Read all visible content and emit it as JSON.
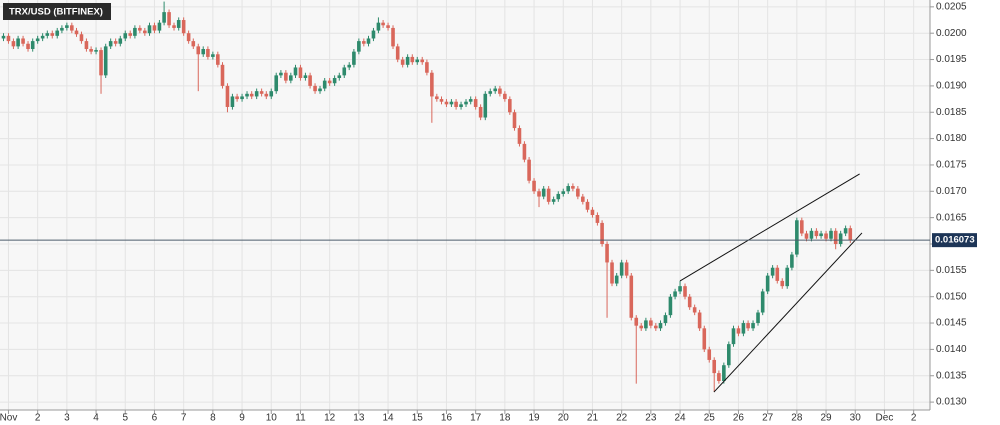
{
  "chart_data": {
    "type": "candlestick",
    "title": "TRX/USD (BITFINEX)",
    "x": [
      0.83,
      1,
      1.17,
      1.33,
      1.5,
      1.67,
      1.83,
      2,
      2.17,
      2.33,
      2.5,
      2.67,
      2.83,
      3,
      3.17,
      3.33,
      3.5,
      3.67,
      3.83,
      4,
      4.17,
      4.33,
      4.5,
      4.67,
      4.83,
      5,
      5.17,
      5.33,
      5.5,
      5.67,
      5.83,
      6,
      6.17,
      6.33,
      6.5,
      6.67,
      6.83,
      7,
      7.17,
      7.33,
      7.5,
      7.67,
      7.83,
      8,
      8.17,
      8.33,
      8.5,
      8.67,
      8.83,
      9,
      9.17,
      9.33,
      9.5,
      9.67,
      9.83,
      10,
      10.17,
      10.33,
      10.5,
      10.67,
      10.83,
      11,
      11.17,
      11.33,
      11.5,
      11.67,
      11.83,
      12,
      12.17,
      12.33,
      12.5,
      12.67,
      12.83,
      13,
      13.17,
      13.33,
      13.5,
      13.67,
      13.83,
      14,
      14.17,
      14.33,
      14.5,
      14.67,
      14.83,
      15,
      15.17,
      15.33,
      15.5,
      15.67,
      15.83,
      16,
      16.17,
      16.33,
      16.5,
      16.67,
      16.83,
      17,
      17.17,
      17.33,
      17.5,
      17.67,
      17.83,
      18,
      18.17,
      18.33,
      18.5,
      18.67,
      18.83,
      19,
      19.17,
      19.33,
      19.5,
      19.67,
      19.83,
      20,
      20.17,
      20.33,
      20.5,
      20.67,
      20.83,
      21,
      21.17,
      21.33,
      21.5,
      21.67,
      21.83,
      22,
      22.17,
      22.33,
      22.5,
      22.67,
      22.83,
      23,
      23.17,
      23.33,
      23.5,
      23.67,
      23.83,
      24,
      24.17,
      24.33,
      24.5,
      24.67,
      24.83,
      25,
      25.17,
      25.33,
      25.5,
      25.67,
      25.83,
      26,
      26.17,
      26.33,
      26.5,
      26.67,
      26.83,
      27,
      27.17,
      27.33,
      27.5,
      27.67,
      27.83,
      28,
      28.17,
      28.33,
      28.5,
      28.67,
      28.83,
      29,
      29.17,
      29.33,
      29.5,
      29.67,
      29.83
    ],
    "open": [
      0.0199,
      0.01995,
      0.01985,
      0.01975,
      0.0199,
      0.0198,
      0.0197,
      0.01985,
      0.0199,
      0.01995,
      0.02,
      0.01995,
      0.02005,
      0.0201,
      0.02015,
      0.02005,
      0.01998,
      0.01985,
      0.0197,
      0.01965,
      0.01968,
      0.0192,
      0.01975,
      0.01985,
      0.0198,
      0.0199,
      0.02,
      0.01995,
      0.0201,
      0.02005,
      0.02,
      0.02015,
      0.02005,
      0.0202,
      0.0204,
      0.02015,
      0.0201,
      0.02025,
      0.02,
      0.01985,
      0.01975,
      0.0196,
      0.0197,
      0.01955,
      0.0196,
      0.0194,
      0.019,
      0.0186,
      0.0188,
      0.01875,
      0.0188,
      0.01885,
      0.0188,
      0.0189,
      0.01885,
      0.0188,
      0.0189,
      0.0192,
      0.01925,
      0.0191,
      0.0192,
      0.01935,
      0.01915,
      0.0192,
      0.019,
      0.0189,
      0.01895,
      0.0191,
      0.01905,
      0.01915,
      0.0192,
      0.01935,
      0.0194,
      0.01965,
      0.01985,
      0.0198,
      0.0199,
      0.02005,
      0.0202,
      0.02015,
      0.0201,
      0.01975,
      0.0195,
      0.0194,
      0.01955,
      0.01945,
      0.0195,
      0.01945,
      0.01925,
      0.0188,
      0.01875,
      0.0187,
      0.01865,
      0.0187,
      0.0186,
      0.01865,
      0.0187,
      0.01875,
      0.0186,
      0.0184,
      0.01885,
      0.0189,
      0.01895,
      0.01885,
      0.01875,
      0.0185,
      0.0182,
      0.0179,
      0.0176,
      0.0172,
      0.017,
      0.0169,
      0.01705,
      0.0168,
      0.01685,
      0.01695,
      0.017,
      0.0171,
      0.01705,
      0.0169,
      0.0168,
      0.01665,
      0.01655,
      0.0164,
      0.016,
      0.01565,
      0.01525,
      0.0154,
      0.01565,
      0.0154,
      0.0146,
      0.01445,
      0.0144,
      0.01455,
      0.01445,
      0.0144,
      0.0145,
      0.01465,
      0.015,
      0.0151,
      0.0152,
      0.015,
      0.0148,
      0.0147,
      0.0144,
      0.014,
      0.0138,
      0.01355,
      0.0134,
      0.0137,
      0.0141,
      0.0144,
      0.0143,
      0.0145,
      0.0144,
      0.0145,
      0.0147,
      0.0151,
      0.0154,
      0.01555,
      0.0153,
      0.0152,
      0.01555,
      0.0158,
      0.01645,
      0.0162,
      0.0161,
      0.01625,
      0.01615,
      0.0162,
      0.0161,
      0.01625,
      0.016,
      0.0162,
      0.0163
    ],
    "high": [
      0.02,
      0.02,
      0.0199,
      0.01995,
      0.01995,
      0.01985,
      0.0199,
      0.01995,
      0.02,
      0.02005,
      0.02005,
      0.0201,
      0.02015,
      0.0202,
      0.0202,
      0.0201,
      0.02003,
      0.0199,
      0.01975,
      0.01973,
      0.01973,
      0.0198,
      0.0199,
      0.0199,
      0.01995,
      0.02005,
      0.02005,
      0.02015,
      0.02015,
      0.0201,
      0.0202,
      0.0202,
      0.02025,
      0.0206,
      0.02045,
      0.0202,
      0.0203,
      0.0203,
      0.02005,
      0.0199,
      0.0198,
      0.01975,
      0.01975,
      0.01965,
      0.01965,
      0.01945,
      0.01905,
      0.01885,
      0.01885,
      0.01885,
      0.0189,
      0.0189,
      0.01895,
      0.01895,
      0.0189,
      0.01895,
      0.01925,
      0.0193,
      0.0193,
      0.01925,
      0.0194,
      0.0194,
      0.01925,
      0.01925,
      0.01905,
      0.019,
      0.01915,
      0.01915,
      0.0192,
      0.01925,
      0.0194,
      0.01945,
      0.0197,
      0.0199,
      0.0199,
      0.01995,
      0.0201,
      0.0203,
      0.02025,
      0.0202,
      0.02015,
      0.0198,
      0.01955,
      0.0196,
      0.0196,
      0.01955,
      0.01955,
      0.0195,
      0.0193,
      0.01885,
      0.0188,
      0.01875,
      0.01875,
      0.01875,
      0.0187,
      0.01875,
      0.0188,
      0.0188,
      0.01865,
      0.0189,
      0.01895,
      0.019,
      0.019,
      0.0189,
      0.0188,
      0.01855,
      0.01825,
      0.01795,
      0.01765,
      0.01725,
      0.01705,
      0.0171,
      0.0171,
      0.0169,
      0.017,
      0.01705,
      0.01715,
      0.01715,
      0.0171,
      0.01695,
      0.01685,
      0.0167,
      0.0166,
      0.01645,
      0.01605,
      0.0157,
      0.01545,
      0.0157,
      0.0157,
      0.01545,
      0.01465,
      0.0145,
      0.0146,
      0.0146,
      0.0145,
      0.01455,
      0.0147,
      0.01505,
      0.01515,
      0.0153,
      0.01525,
      0.01505,
      0.01485,
      0.01475,
      0.01445,
      0.01405,
      0.01385,
      0.0136,
      0.01375,
      0.01415,
      0.01445,
      0.01445,
      0.01455,
      0.01455,
      0.01455,
      0.01475,
      0.01515,
      0.01545,
      0.0156,
      0.0156,
      0.01535,
      0.0156,
      0.01585,
      0.0165,
      0.0165,
      0.01625,
      0.0163,
      0.0163,
      0.01625,
      0.01625,
      0.0163,
      0.0163,
      0.01625,
      0.01635,
      0.01635
    ],
    "low": [
      0.01985,
      0.0198,
      0.0197,
      0.0197,
      0.01975,
      0.01965,
      0.01965,
      0.0198,
      0.01985,
      0.0199,
      0.0199,
      0.0199,
      0.02,
      0.02005,
      0.02,
      0.01993,
      0.0198,
      0.01965,
      0.0196,
      0.0196,
      0.01885,
      0.01915,
      0.0197,
      0.01975,
      0.01975,
      0.01985,
      0.0199,
      0.0199,
      0.02,
      0.01995,
      0.01995,
      0.02,
      0.02,
      0.02015,
      0.0201,
      0.02005,
      0.02005,
      0.01995,
      0.0198,
      0.0197,
      0.0189,
      0.01955,
      0.0195,
      0.0195,
      0.01935,
      0.01895,
      0.0185,
      0.01855,
      0.0187,
      0.0187,
      0.01875,
      0.01875,
      0.01875,
      0.0188,
      0.01875,
      0.01875,
      0.01885,
      0.01915,
      0.01905,
      0.01905,
      0.01915,
      0.0191,
      0.0191,
      0.01895,
      0.01885,
      0.01885,
      0.0189,
      0.019,
      0.019,
      0.0191,
      0.01915,
      0.0193,
      0.01935,
      0.0196,
      0.01975,
      0.01975,
      0.01985,
      0.02,
      0.0201,
      0.02005,
      0.0197,
      0.01945,
      0.01935,
      0.01935,
      0.0194,
      0.0194,
      0.0194,
      0.0192,
      0.0183,
      0.0187,
      0.01865,
      0.0186,
      0.0186,
      0.01855,
      0.01855,
      0.0186,
      0.01865,
      0.01855,
      0.01835,
      0.01835,
      0.0188,
      0.01885,
      0.0188,
      0.0187,
      0.01845,
      0.01815,
      0.01785,
      0.01755,
      0.01715,
      0.01695,
      0.0167,
      0.01685,
      0.01675,
      0.01675,
      0.0168,
      0.0169,
      0.01695,
      0.017,
      0.01685,
      0.01675,
      0.0166,
      0.0165,
      0.01635,
      0.01595,
      0.0146,
      0.0152,
      0.0152,
      0.01535,
      0.01535,
      0.01455,
      0.01335,
      0.01435,
      0.01435,
      0.0144,
      0.01435,
      0.01435,
      0.01445,
      0.0146,
      0.01495,
      0.01505,
      0.01495,
      0.01475,
      0.01465,
      0.01435,
      0.01395,
      0.01375,
      0.0132,
      0.01335,
      0.01335,
      0.01365,
      0.01405,
      0.01425,
      0.01425,
      0.01435,
      0.01435,
      0.01445,
      0.01465,
      0.01505,
      0.01535,
      0.01525,
      0.01515,
      0.01515,
      0.0155,
      0.01575,
      0.01615,
      0.01605,
      0.01605,
      0.0161,
      0.0161,
      0.01605,
      0.01605,
      0.0159,
      0.01595,
      0.01615,
      0.01602
    ],
    "close": [
      0.01995,
      0.01985,
      0.01975,
      0.0199,
      0.0198,
      0.0197,
      0.01985,
      0.0199,
      0.01995,
      0.02,
      0.01995,
      0.02005,
      0.0201,
      0.02015,
      0.02005,
      0.01998,
      0.01985,
      0.0197,
      0.01965,
      0.01968,
      0.0192,
      0.01975,
      0.01985,
      0.0198,
      0.0199,
      0.02,
      0.01995,
      0.0201,
      0.02005,
      0.02,
      0.02015,
      0.02005,
      0.0202,
      0.0204,
      0.02015,
      0.0201,
      0.02025,
      0.02,
      0.01985,
      0.01975,
      0.0196,
      0.0197,
      0.01955,
      0.0196,
      0.0194,
      0.019,
      0.0186,
      0.0188,
      0.01875,
      0.0188,
      0.01885,
      0.0188,
      0.0189,
      0.01885,
      0.0188,
      0.0189,
      0.0192,
      0.01925,
      0.0191,
      0.0192,
      0.01935,
      0.01915,
      0.0192,
      0.019,
      0.0189,
      0.01895,
      0.0191,
      0.01905,
      0.01915,
      0.0192,
      0.01935,
      0.0194,
      0.01965,
      0.01985,
      0.0198,
      0.0199,
      0.02005,
      0.0202,
      0.02015,
      0.0201,
      0.01975,
      0.0195,
      0.0194,
      0.01955,
      0.01945,
      0.0195,
      0.01945,
      0.01925,
      0.0188,
      0.01875,
      0.0187,
      0.01865,
      0.0187,
      0.0186,
      0.01865,
      0.0187,
      0.01875,
      0.0186,
      0.0184,
      0.01885,
      0.0189,
      0.01895,
      0.01885,
      0.01875,
      0.0185,
      0.0182,
      0.0179,
      0.0176,
      0.0172,
      0.017,
      0.0169,
      0.01705,
      0.0168,
      0.01685,
      0.01695,
      0.017,
      0.0171,
      0.01705,
      0.0169,
      0.0168,
      0.01665,
      0.01655,
      0.0164,
      0.016,
      0.01565,
      0.01525,
      0.0154,
      0.01565,
      0.0154,
      0.0146,
      0.01445,
      0.0144,
      0.01455,
      0.01445,
      0.0144,
      0.0145,
      0.01465,
      0.015,
      0.0151,
      0.0152,
      0.015,
      0.0148,
      0.0147,
      0.0144,
      0.014,
      0.0138,
      0.01355,
      0.0134,
      0.0137,
      0.0141,
      0.0144,
      0.0143,
      0.0145,
      0.0144,
      0.0145,
      0.0147,
      0.0151,
      0.0154,
      0.01555,
      0.0153,
      0.0152,
      0.01555,
      0.0158,
      0.01645,
      0.0162,
      0.0161,
      0.01625,
      0.01615,
      0.0162,
      0.0161,
      0.01625,
      0.016,
      0.0162,
      0.0163,
      0.016073
    ],
    "colors": {
      "up": "#2e8a6c",
      "down": "#d9675b"
    },
    "last_price": 0.016073,
    "trendlines": [
      {
        "x": [
          24,
          30.15
        ],
        "y": [
          0.0153,
          0.01733
        ]
      },
      {
        "x": [
          25.16,
          30.23
        ],
        "y": [
          0.01319,
          0.01621
        ]
      }
    ],
    "xlim": [
      0.71,
      32.56
    ],
    "xticks": [
      {
        "value": 1,
        "label": "Nov"
      },
      2,
      3,
      4,
      5,
      6,
      7,
      8,
      9,
      10,
      11,
      12,
      13,
      14,
      15,
      16,
      17,
      18,
      19,
      20,
      21,
      22,
      23,
      24,
      25,
      26,
      27,
      28,
      29,
      30,
      {
        "value": 31,
        "label": "Dec"
      },
      {
        "value": 32,
        "label": "2"
      }
    ],
    "ylim": [
      0.01285,
      0.02063
    ],
    "yticks": [
      {
        "value": 0.013,
        "label": "0.0130"
      },
      {
        "value": 0.0135,
        "label": "0.0135"
      },
      {
        "value": 0.014,
        "label": "0.0140"
      },
      {
        "value": 0.0145,
        "label": "0.0145"
      },
      {
        "value": 0.015,
        "label": "0.0150"
      },
      {
        "value": 0.0155,
        "label": "0.0155"
      },
      {
        "value": 0.016,
        "label": "0.0160"
      },
      {
        "value": 0.0165,
        "label": "0.0165"
      },
      {
        "value": 0.017,
        "label": "0.0170"
      },
      {
        "value": 0.0175,
        "label": "0.0175"
      },
      {
        "value": 0.018,
        "label": "0.0180"
      },
      {
        "value": 0.0185,
        "label": "0.0185"
      },
      {
        "value": 0.019,
        "label": "0.0190"
      },
      {
        "value": 0.0195,
        "label": "0.0195"
      },
      {
        "value": 0.02,
        "label": "0.0200"
      },
      {
        "value": 0.0205,
        "label": "0.0205"
      }
    ],
    "grid": true
  }
}
